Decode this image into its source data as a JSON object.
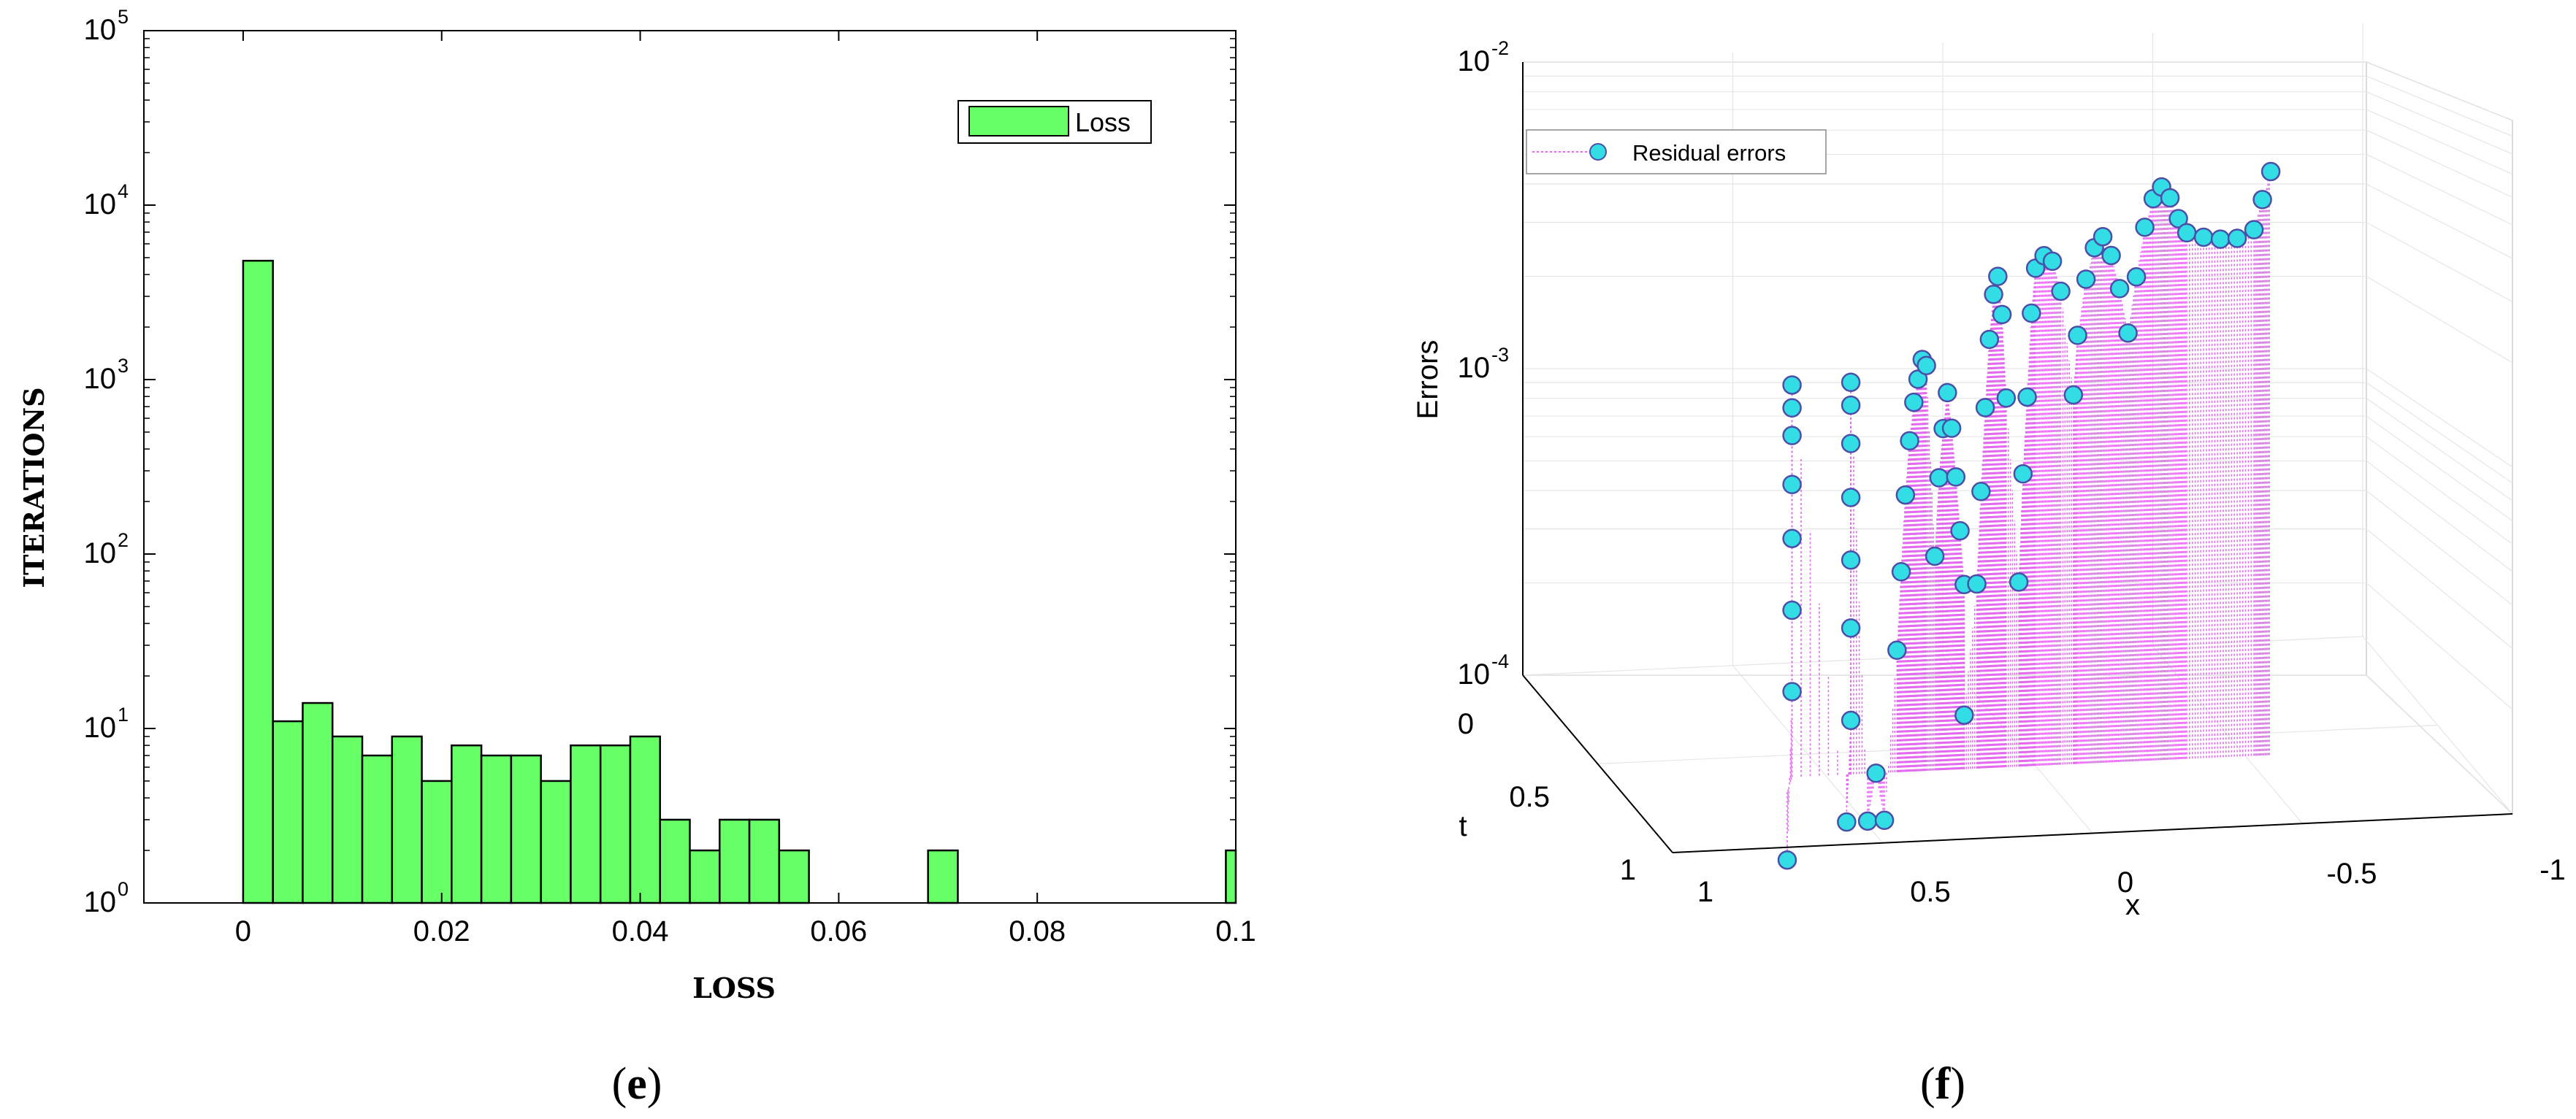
{
  "chart_data": [
    {
      "panel": "e",
      "type": "bar",
      "scale_y": "log",
      "xlabel": "LOSS",
      "ylabel": "ITERATIONS",
      "xlim": [
        -0.01,
        0.1
      ],
      "ylim_exp": [
        0,
        5
      ],
      "x_ticks": [
        "0",
        "0.02",
        "0.04",
        "0.06",
        "0.08",
        "0.1"
      ],
      "x_tick_values": [
        0,
        0.02,
        0.04,
        0.06,
        0.08,
        0.1
      ],
      "y_ticks": [
        {
          "base": "10",
          "exp": "0"
        },
        {
          "base": "10",
          "exp": "1"
        },
        {
          "base": "10",
          "exp": "2"
        },
        {
          "base": "10",
          "exp": "3"
        },
        {
          "base": "10",
          "exp": "4"
        },
        {
          "base": "10",
          "exp": "5"
        }
      ],
      "bin_width": 0.003,
      "bin_starts": [
        0,
        0.003,
        0.006,
        0.009,
        0.012,
        0.015,
        0.018,
        0.021,
        0.024,
        0.027,
        0.03,
        0.033,
        0.036,
        0.039,
        0.042,
        0.045,
        0.048,
        0.051,
        0.054,
        0.069,
        0.099
      ],
      "series": [
        {
          "name": "Loss",
          "color": "#66ff66",
          "values": [
            4800,
            11,
            14,
            9,
            7,
            9,
            5,
            8,
            7,
            7,
            5,
            8,
            8,
            9,
            3,
            2,
            3,
            3,
            2,
            2,
            2
          ]
        }
      ],
      "legend": "top-right",
      "grid": false,
      "caption_letter": "e"
    },
    {
      "panel": "f",
      "type": "scatter",
      "projection": "3d",
      "scale_z": "log",
      "xlabel": "x",
      "ylabel": "t",
      "zlabel": "Errors",
      "x_ticks": [
        "1",
        "0.5",
        "0",
        "-0.5",
        "-1"
      ],
      "t_ticks": [
        "0",
        "0.5",
        "1"
      ],
      "z_ticks": [
        {
          "base": "10",
          "exp": "-4"
        },
        {
          "base": "10",
          "exp": "-3"
        },
        {
          "base": "10",
          "exp": "-2"
        }
      ],
      "series": [
        {
          "name": "Residual errors",
          "marker_color": "#33dde6",
          "stem_color": "#e36bef"
        }
      ],
      "points": [
        [
          0.62,
          0.7,
          6e-05
        ],
        [
          0.58,
          0.62,
          0.00019
        ],
        [
          0.58,
          0.62,
          0.00035
        ],
        [
          0.58,
          0.62,
          0.0006
        ],
        [
          0.58,
          0.62,
          0.0009
        ],
        [
          0.58,
          0.62,
          0.0013
        ],
        [
          0.58,
          0.62,
          0.0016
        ],
        [
          0.58,
          0.62,
          0.0019
        ],
        [
          0.45,
          0.62,
          7e-05
        ],
        [
          0.44,
          0.62,
          0.00015
        ],
        [
          0.44,
          0.62,
          0.0003
        ],
        [
          0.44,
          0.62,
          0.0005
        ],
        [
          0.44,
          0.62,
          0.0008
        ],
        [
          0.44,
          0.62,
          0.0012
        ],
        [
          0.44,
          0.62,
          0.0016
        ],
        [
          0.44,
          0.62,
          0.0019
        ],
        [
          0.4,
          0.62,
          7e-05
        ],
        [
          0.38,
          0.62,
          0.0001
        ],
        [
          0.36,
          0.62,
          7e-05
        ],
        [
          0.33,
          0.62,
          0.00025
        ],
        [
          0.32,
          0.62,
          0.00045
        ],
        [
          0.31,
          0.62,
          0.0008
        ],
        [
          0.3,
          0.62,
          0.0012
        ],
        [
          0.29,
          0.62,
          0.0016
        ],
        [
          0.28,
          0.62,
          0.0019
        ],
        [
          0.27,
          0.62,
          0.0022
        ],
        [
          0.26,
          0.62,
          0.0021
        ],
        [
          0.24,
          0.62,
          0.0005
        ],
        [
          0.23,
          0.62,
          0.0009
        ],
        [
          0.22,
          0.62,
          0.0013
        ],
        [
          0.21,
          0.62,
          0.0017
        ],
        [
          0.2,
          0.62,
          0.0013
        ],
        [
          0.19,
          0.62,
          0.0009
        ],
        [
          0.18,
          0.62,
          0.0006
        ],
        [
          0.17,
          0.62,
          0.0004
        ],
        [
          0.17,
          0.62,
          0.00015
        ],
        [
          0.14,
          0.62,
          0.0004
        ],
        [
          0.13,
          0.62,
          0.0008
        ],
        [
          0.12,
          0.62,
          0.0015
        ],
        [
          0.11,
          0.62,
          0.0025
        ],
        [
          0.1,
          0.62,
          0.0035
        ],
        [
          0.09,
          0.62,
          0.004
        ],
        [
          0.08,
          0.62,
          0.003
        ],
        [
          0.07,
          0.62,
          0.0016
        ],
        [
          0.04,
          0.62,
          0.0004
        ],
        [
          0.03,
          0.62,
          0.0009
        ],
        [
          0.02,
          0.62,
          0.0016
        ],
        [
          0.01,
          0.62,
          0.003
        ],
        [
          0.0,
          0.62,
          0.0042
        ],
        [
          -0.02,
          0.62,
          0.0046
        ],
        [
          -0.04,
          0.62,
          0.0044
        ],
        [
          -0.06,
          0.62,
          0.0035
        ],
        [
          -0.09,
          0.62,
          0.0016
        ],
        [
          -0.1,
          0.62,
          0.0025
        ],
        [
          -0.12,
          0.62,
          0.0038
        ],
        [
          -0.14,
          0.62,
          0.0048
        ],
        [
          -0.16,
          0.62,
          0.0052
        ],
        [
          -0.18,
          0.62,
          0.0045
        ],
        [
          -0.2,
          0.62,
          0.0035
        ],
        [
          -0.22,
          0.62,
          0.0025
        ],
        [
          -0.24,
          0.62,
          0.0038
        ],
        [
          -0.26,
          0.62,
          0.0055
        ],
        [
          -0.28,
          0.62,
          0.0068
        ],
        [
          -0.3,
          0.62,
          0.0074
        ],
        [
          -0.32,
          0.62,
          0.0068
        ],
        [
          -0.34,
          0.62,
          0.0058
        ],
        [
          -0.36,
          0.62,
          0.0052
        ],
        [
          -0.4,
          0.62,
          0.005
        ],
        [
          -0.44,
          0.62,
          0.0049
        ],
        [
          -0.48,
          0.62,
          0.0049
        ],
        [
          -0.52,
          0.62,
          0.0052
        ],
        [
          -0.54,
          0.62,
          0.0065
        ],
        [
          -0.56,
          0.62,
          0.008
        ]
      ],
      "legend": "top-left",
      "grid": true,
      "caption_letter": "f"
    }
  ]
}
